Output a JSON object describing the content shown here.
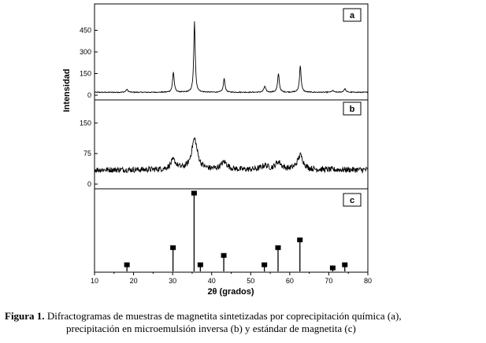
{
  "chart_data": {
    "type": "line",
    "xlabel": "2θ (grados)",
    "ylabel": "Intensidad",
    "xlim": [
      10,
      80
    ],
    "xticks": [
      10,
      20,
      30,
      40,
      50,
      60,
      70,
      80
    ],
    "panels": [
      {
        "label": "a",
        "type": "line",
        "ylim": [
          0,
          600
        ],
        "yticks": [
          0,
          150,
          300,
          450
        ],
        "baseline": 20,
        "noise": 3,
        "peaks": [
          {
            "x": 18.3,
            "height": 20,
            "width": 0.3
          },
          {
            "x": 30.2,
            "height": 140,
            "width": 0.25
          },
          {
            "x": 35.6,
            "height": 490,
            "width": 0.22
          },
          {
            "x": 43.2,
            "height": 95,
            "width": 0.25
          },
          {
            "x": 53.6,
            "height": 40,
            "width": 0.3
          },
          {
            "x": 57.1,
            "height": 130,
            "width": 0.25
          },
          {
            "x": 62.7,
            "height": 185,
            "width": 0.25
          },
          {
            "x": 71.0,
            "height": 12,
            "width": 0.3
          },
          {
            "x": 74.1,
            "height": 25,
            "width": 0.3
          }
        ]
      },
      {
        "label": "b",
        "type": "line",
        "ylim": [
          0,
          195
        ],
        "yticks": [
          0,
          75,
          150
        ],
        "baseline": 35,
        "noise": 7,
        "peaks": [
          {
            "x": 30.2,
            "height": 22,
            "width": 0.9
          },
          {
            "x": 35.6,
            "height": 75,
            "width": 0.9
          },
          {
            "x": 43.2,
            "height": 18,
            "width": 1.0
          },
          {
            "x": 53.6,
            "height": 10,
            "width": 1.0
          },
          {
            "x": 57.1,
            "height": 18,
            "width": 0.9
          },
          {
            "x": 62.7,
            "height": 35,
            "width": 0.9
          }
        ]
      },
      {
        "label": "c",
        "type": "bar",
        "ylim": [
          0,
          100
        ],
        "yticks": [],
        "x": [
          18.3,
          30.1,
          35.5,
          37.1,
          43.1,
          53.5,
          57.0,
          62.6,
          71.0,
          74.1
        ],
        "values": [
          8,
          30,
          100,
          8,
          20,
          8,
          30,
          40,
          4,
          8
        ]
      }
    ]
  },
  "caption": {
    "prefix": "Figura 1.",
    "line1": " Difractogramas de muestras de magnetita sintetizadas por coprecipitación química (a),",
    "line2": "precipitación en microemulsión inversa (b) y estándar de magnetita (c)"
  }
}
